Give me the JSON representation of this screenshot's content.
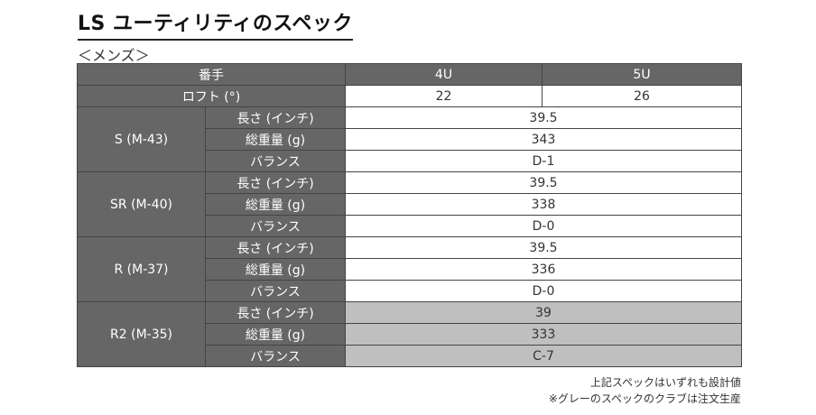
{
  "title": "LS ユーティリティのスペック",
  "subtitle": "＜メンズ＞",
  "header": {
    "label": "番手",
    "models": [
      "4U",
      "5U"
    ]
  },
  "loft": {
    "label": "ロフト (°)",
    "values": [
      "22",
      "26"
    ]
  },
  "row_labels": {
    "length": "長さ (インチ)",
    "weight": "総重量 (g)",
    "balance": "バランス"
  },
  "flex_groups": [
    {
      "name": "S (M-43)",
      "length": "39.5",
      "weight": "343",
      "balance": "D-1",
      "made_to_order": false
    },
    {
      "name": "SR (M-40)",
      "length": "39.5",
      "weight": "338",
      "balance": "D-0",
      "made_to_order": false
    },
    {
      "name": "R (M-37)",
      "length": "39.5",
      "weight": "336",
      "balance": "D-0",
      "made_to_order": false
    },
    {
      "name": "R2 (M-35)",
      "length": "39",
      "weight": "333",
      "balance": "C-7",
      "made_to_order": true
    }
  ],
  "notes": [
    "上記スペックはいずれも設計値",
    "※グレーのスペックのクラブは注文生産"
  ],
  "colors": {
    "header_bg": "#666666",
    "made_to_order_bg": "#bfbfbf",
    "text": "#333333"
  }
}
